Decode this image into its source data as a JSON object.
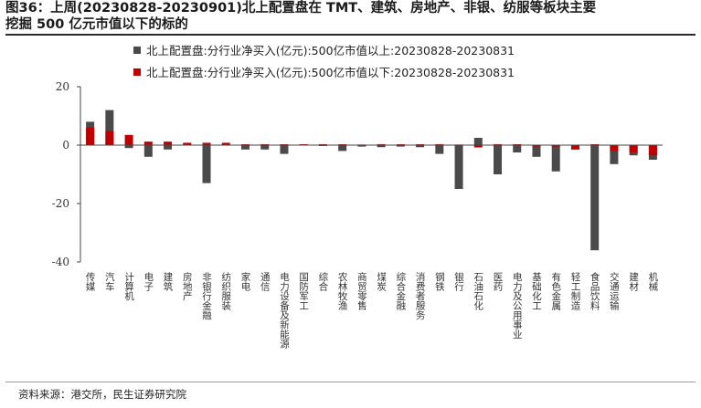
{
  "title_line1": "图36：上周(20230828-20230901)北上配置盘在 TMT、建筑、房地产、非银、纺服等板块主要",
  "title_line2": "挖掘 500 亿元市值以下的标的",
  "source": "资料来源：港交所，民生证券研究院",
  "chart_data": {
    "type": "bar",
    "ylim": [
      -40,
      20
    ],
    "yticks": [
      20,
      0,
      -20,
      -40
    ],
    "categories": [
      "传媒",
      "汽车",
      "计算机",
      "电子",
      "建筑",
      "房地产",
      "非银行金融",
      "纺织服装",
      "家电",
      "通信",
      "电力设备及新能源",
      "国防军工",
      "综合",
      "农林牧渔",
      "商贸零售",
      "煤炭",
      "综合金融",
      "消费者服务",
      "钢铁",
      "银行",
      "石油石化",
      "医药",
      "电力及公用事业",
      "基础化工",
      "有色金属",
      "轻工制造",
      "食品饮料",
      "交通运输",
      "建材",
      "机械"
    ],
    "series": [
      {
        "name": "北上配置盘:分行业净买入(亿元):500亿市值以上:20230828-20230831",
        "color": "#4a4a4a",
        "values": [
          8.0,
          12.0,
          -1.0,
          -4.0,
          -1.5,
          0.5,
          -13.0,
          0.3,
          -1.5,
          -1.5,
          -3.0,
          0.3,
          -0.3,
          -2.0,
          -0.5,
          -0.7,
          -0.5,
          -0.7,
          -3.0,
          -15.0,
          2.5,
          -10.0,
          -2.5,
          -4.0,
          -9.0,
          -1.5,
          -36.0,
          -6.5,
          -3.5,
          -5.0
        ]
      },
      {
        "name": "北上配置盘:分行业净买入(亿元):500亿市值以下:20230828-20230831",
        "color": "#c00000",
        "values": [
          6.0,
          4.8,
          3.5,
          1.2,
          1.2,
          0.8,
          0.8,
          0.8,
          0.3,
          0.3,
          0.3,
          0.3,
          0.3,
          0.3,
          0.2,
          0.3,
          0.3,
          0.3,
          0.3,
          0.2,
          -0.8,
          0.3,
          0.3,
          -0.5,
          -0.5,
          -1.5,
          0.3,
          -2.0,
          -2.5,
          -3.5
        ]
      }
    ]
  }
}
